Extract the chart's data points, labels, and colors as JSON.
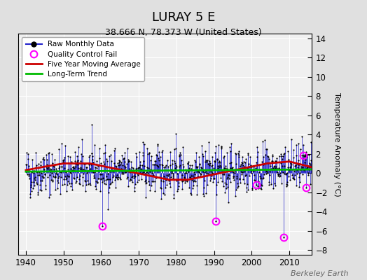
{
  "title": "LURAY 5 E",
  "subtitle": "38.666 N, 78.373 W (United States)",
  "ylabel": "Temperature Anomaly (°C)",
  "watermark": "Berkeley Earth",
  "xlim": [
    1938,
    2016
  ],
  "ylim": [
    -8.5,
    14.5
  ],
  "yticks": [
    -8,
    -6,
    -4,
    -2,
    0,
    2,
    4,
    6,
    8,
    10,
    12,
    14
  ],
  "xticks": [
    1940,
    1950,
    1960,
    1970,
    1980,
    1990,
    2000,
    2010
  ],
  "fig_bg_color": "#e0e0e0",
  "plot_bg_color": "#f0f0f0",
  "grid_color": "white",
  "line_color_raw": "#2222cc",
  "dot_color_raw": "black",
  "line_color_avg": "#cc0000",
  "line_color_trend": "#00bb00",
  "qc_fail_color": "#ff00ff",
  "seed": 42,
  "start_year": 1940,
  "end_year": 2015,
  "months": 12,
  "qc_times": [
    1960.3,
    1990.5,
    2008.5,
    2013.7,
    2014.5,
    2001.3
  ],
  "qc_vals": [
    -5.5,
    -5.0,
    -6.7,
    1.8,
    -1.5,
    -1.2
  ]
}
